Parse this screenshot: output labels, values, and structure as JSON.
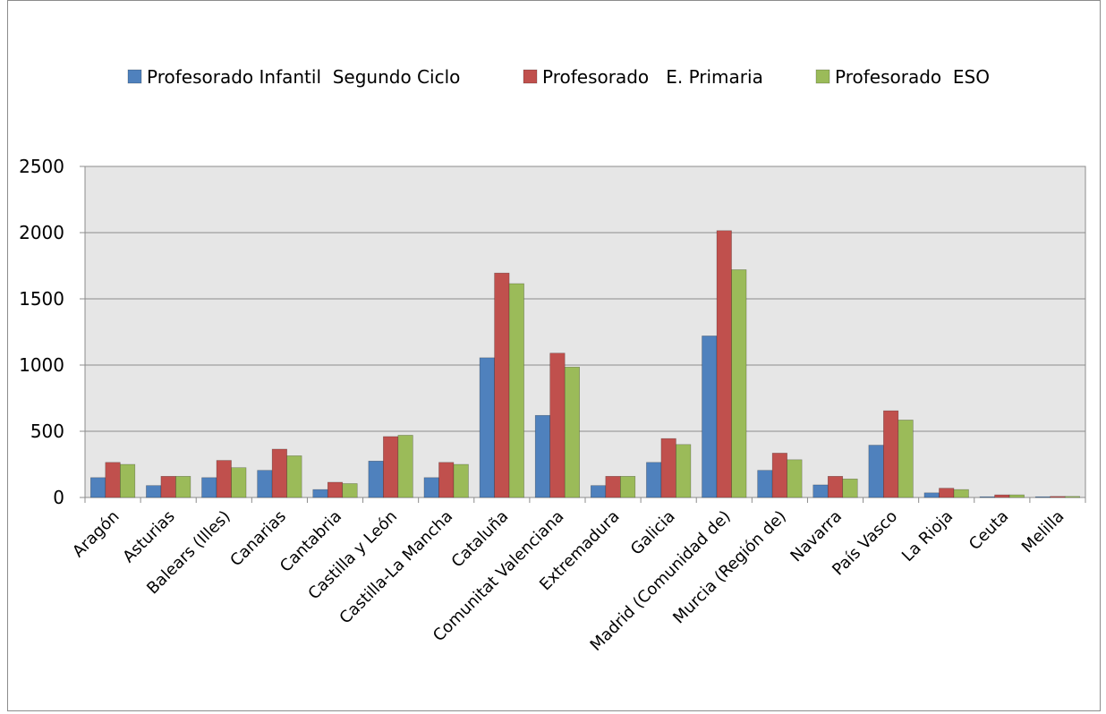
{
  "chart_data": {
    "type": "bar",
    "title": "",
    "xlabel": "",
    "ylabel": "",
    "ylim": [
      0,
      2500
    ],
    "yticks": [
      0,
      500,
      1000,
      1500,
      2000,
      2500
    ],
    "grid": true,
    "legend_position": "top",
    "plot_background": "#e6e6e6",
    "categories": [
      "Aragón",
      "Asturias",
      "Balears (Illes)",
      "Canarias",
      "Cantabria",
      "Castilla y León",
      "Castilla-La Mancha",
      "Cataluña",
      "Comunitat Valenciana",
      "Extremadura",
      "Galicia",
      "Madrid (Comunidad de)",
      "Murcia (Región de)",
      "Navarra",
      "País Vasco",
      "La Rioja",
      "Ceuta",
      "Melilla"
    ],
    "series": [
      {
        "name": "Profesorado Infantil  Segundo Ciclo",
        "color": "#4f81bd",
        "values": [
          150,
          90,
          150,
          205,
          60,
          275,
          150,
          1055,
          620,
          90,
          265,
          1220,
          205,
          95,
          395,
          35,
          5,
          5
        ]
      },
      {
        "name": "Profesorado   E. Primaria",
        "color": "#c0504d",
        "values": [
          265,
          160,
          280,
          365,
          115,
          460,
          265,
          1695,
          1090,
          160,
          445,
          2015,
          335,
          160,
          655,
          70,
          20,
          8
        ]
      },
      {
        "name": "Profesorado  ESO",
        "color": "#9bbb59",
        "values": [
          250,
          160,
          225,
          315,
          105,
          470,
          250,
          1615,
          985,
          160,
          400,
          1720,
          285,
          140,
          585,
          60,
          20,
          8
        ]
      }
    ]
  }
}
